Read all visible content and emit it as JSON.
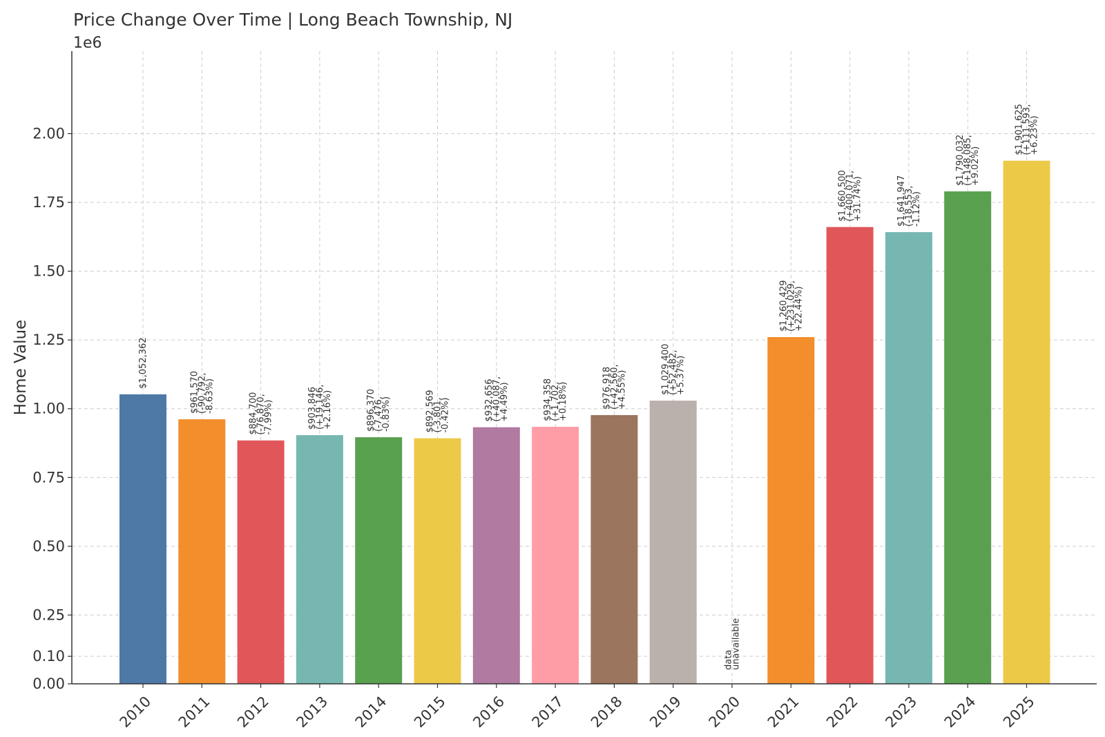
{
  "chart_data": {
    "type": "bar",
    "title": "Price Change Over Time | Long Beach Township, NJ",
    "xlabel": "",
    "ylabel": "Home Value",
    "y_offset_label": "1e6",
    "ylim": [
      0,
      2300000
    ],
    "yticks": [
      {
        "value": 0,
        "label": "0.00"
      },
      {
        "value": 100000,
        "label": "0.10"
      },
      {
        "value": 250000,
        "label": "0.25"
      },
      {
        "value": 500000,
        "label": "0.50"
      },
      {
        "value": 750000,
        "label": "0.75"
      },
      {
        "value": 1000000,
        "label": "1.00"
      },
      {
        "value": 1250000,
        "label": "1.25"
      },
      {
        "value": 1500000,
        "label": "1.50"
      },
      {
        "value": 1750000,
        "label": "1.75"
      },
      {
        "value": 2000000,
        "label": "2.00"
      }
    ],
    "grid": true,
    "categories": [
      "2010",
      "2011",
      "2012",
      "2013",
      "2014",
      "2015",
      "2016",
      "2017",
      "2018",
      "2019",
      "2020",
      "2021",
      "2022",
      "2023",
      "2024",
      "2025"
    ],
    "values": [
      1052362,
      961570,
      884700,
      903846,
      896370,
      892569,
      932656,
      934358,
      976918,
      1029400,
      null,
      1260429,
      1660500,
      1641947,
      1790032,
      1901625
    ],
    "colors": [
      "#4e79a7",
      "#f28e2b",
      "#e15759",
      "#76b7b2",
      "#59a14f",
      "#edc948",
      "#b07aa1",
      "#ff9da7",
      "#9c755f",
      "#bab0ac",
      null,
      "#f28e2b",
      "#e15759",
      "#76b7b2",
      "#59a14f",
      "#edc948"
    ],
    "data_labels": [
      [
        "$1,052,362"
      ],
      [
        "$961,570",
        "(-90,792,",
        "-8.63%)"
      ],
      [
        "$884,700",
        "(-76,870,",
        "-7.99%)"
      ],
      [
        "$903,846",
        "(+19,146,",
        "+2.16%)"
      ],
      [
        "$896,370",
        "(-7,476,",
        "-0.83%)"
      ],
      [
        "$892,569",
        "(-3,801,",
        "-0.42%)"
      ],
      [
        "$932,656",
        "(+40,087,",
        "+4.49%)"
      ],
      [
        "$934,358",
        "(+1,702,",
        "+0.18%)"
      ],
      [
        "$976,918",
        "(+42,560,",
        "+4.55%)"
      ],
      [
        "$1,029,400",
        "(+52,482,",
        "+5.37%)"
      ],
      [
        "data",
        "unavailable"
      ],
      [
        "$1,260,429",
        "(+231,029,",
        "+22.44%)"
      ],
      [
        "$1,660,500",
        "(+400,071,",
        "+31.74%)"
      ],
      [
        "$1,641,947",
        "(-18,553,",
        "-1.12%)"
      ],
      [
        "$1,790,032",
        "(+148,085,",
        "+9.02%)"
      ],
      [
        "$1,901,625",
        "(+111,593,",
        "+6.23%)"
      ]
    ]
  }
}
